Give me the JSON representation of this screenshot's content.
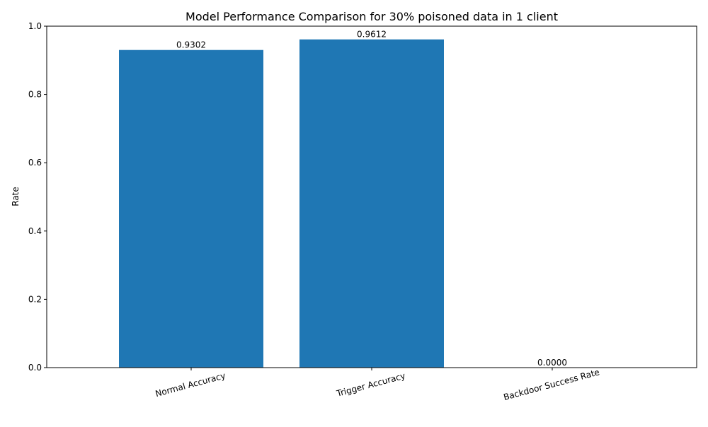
{
  "chart_data": {
    "type": "bar",
    "title": "Model Performance Comparison for 30% poisoned data in 1 client",
    "xlabel": "",
    "ylabel": "Rate",
    "categories": [
      "Normal Accuracy",
      "Trigger Accuracy",
      "Backdoor Success Rate"
    ],
    "values": [
      0.9302,
      0.9612,
      0.0
    ],
    "data_labels": [
      "0.9302",
      "0.9612",
      "0.0000"
    ],
    "ylim": [
      0,
      1.0
    ],
    "yticks": [
      "0.0",
      "0.2",
      "0.4",
      "0.6",
      "0.8",
      "1.0"
    ],
    "xtick_rotation_deg": 15,
    "grid": false,
    "legend": "none",
    "bar_color": "#1f77b4"
  }
}
